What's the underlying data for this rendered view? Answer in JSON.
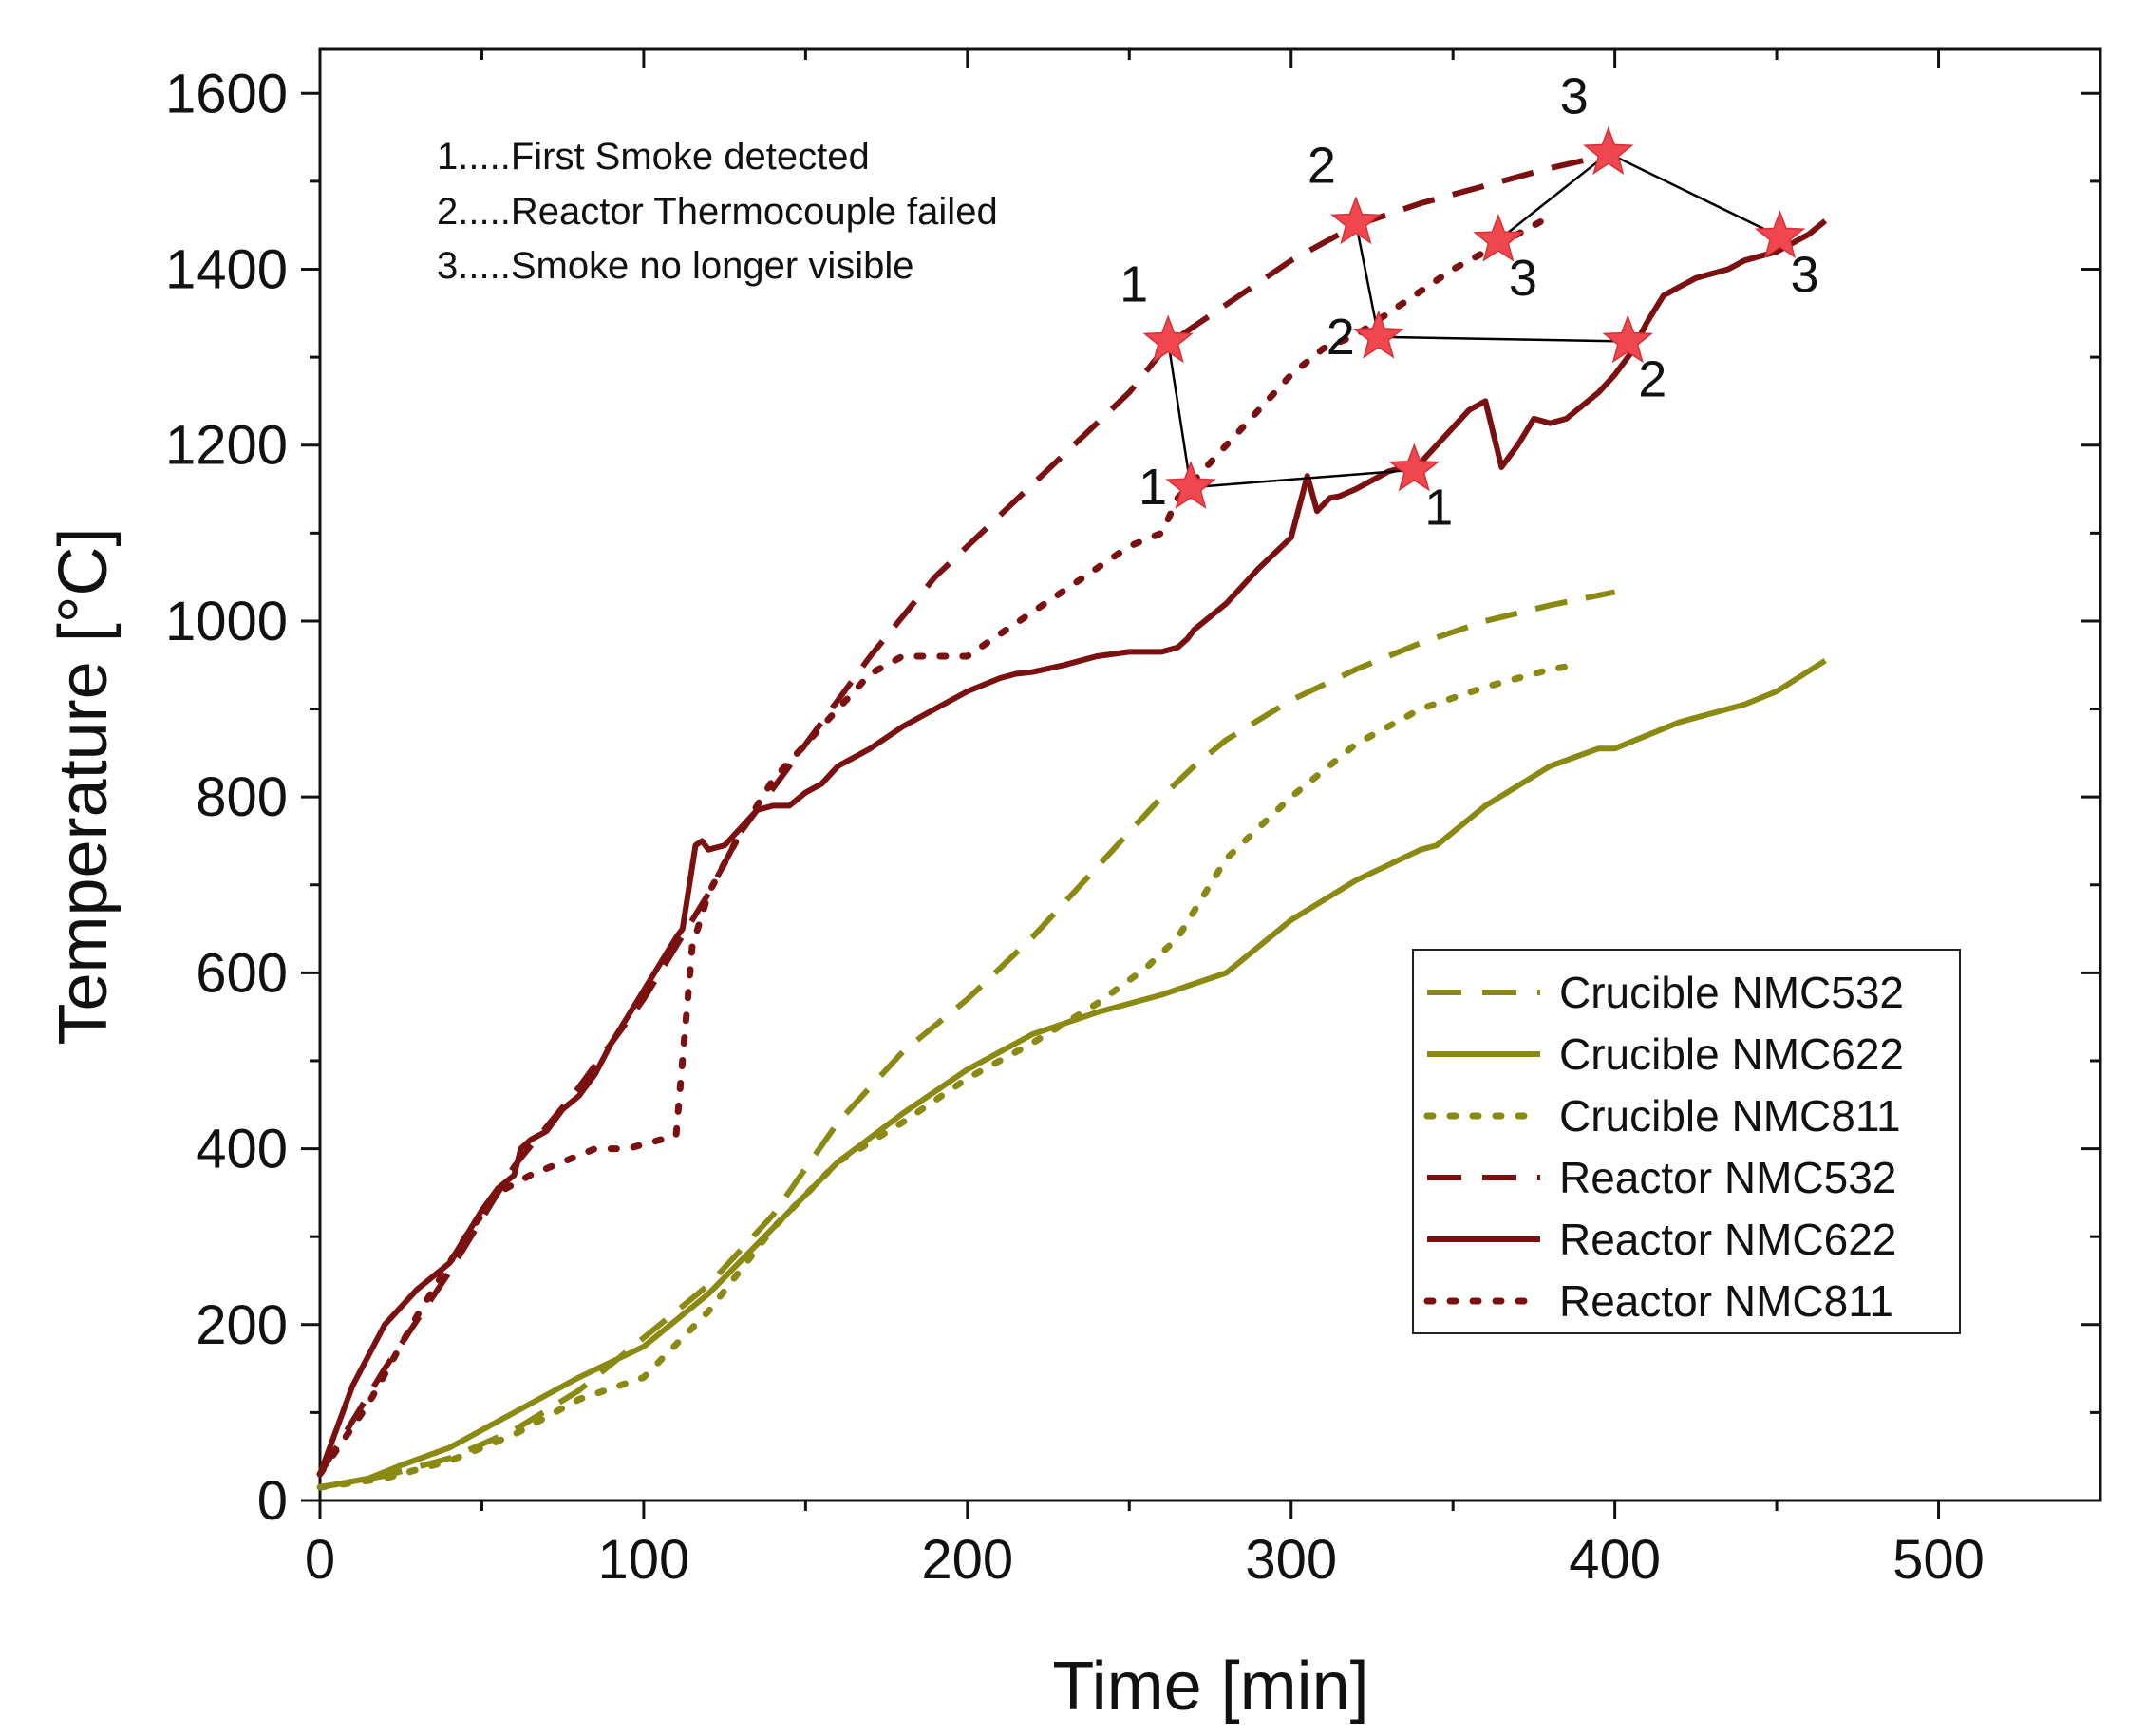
{
  "chart_data": {
    "type": "line",
    "title": "",
    "xlabel": "Time [min]",
    "ylabel": "Temperature [°C]",
    "xlim": [
      0,
      550
    ],
    "ylim": [
      0,
      1650
    ],
    "xticks": [
      0,
      100,
      200,
      300,
      400,
      500
    ],
    "yticks": [
      0,
      200,
      400,
      600,
      800,
      1000,
      1200,
      1400,
      1600
    ],
    "grid": false,
    "legend_position": "lower-right",
    "colors": {
      "crucible": "#8a8a12",
      "reactor": "#7b1010",
      "marker": "#f0474f",
      "connector": "#000000"
    },
    "series": [
      {
        "name": "Crucible NMC532",
        "group": "crucible",
        "style": "dashed",
        "x": [
          0,
          20,
          40,
          60,
          80,
          100,
          120,
          140,
          160,
          180,
          200,
          220,
          240,
          260,
          270,
          280,
          300,
          320,
          340,
          360,
          380,
          400
        ],
        "y": [
          15,
          28,
          48,
          80,
          125,
          185,
          245,
          325,
          430,
          510,
          570,
          640,
          720,
          800,
          835,
          865,
          910,
          945,
          975,
          1000,
          1018,
          1033
        ]
      },
      {
        "name": "Crucible NMC622",
        "group": "crucible",
        "style": "solid",
        "x": [
          0,
          15,
          25,
          40,
          60,
          80,
          100,
          120,
          140,
          160,
          180,
          200,
          220,
          240,
          260,
          280,
          300,
          320,
          340,
          345,
          360,
          380,
          395,
          400,
          420,
          440,
          450,
          465
        ],
        "y": [
          15,
          25,
          40,
          60,
          100,
          140,
          175,
          235,
          310,
          385,
          440,
          490,
          530,
          555,
          575,
          600,
          660,
          705,
          740,
          745,
          790,
          835,
          855,
          855,
          885,
          905,
          920,
          955
        ]
      },
      {
        "name": "Crucible NMC811",
        "group": "crucible",
        "style": "dotted",
        "x": [
          0,
          20,
          40,
          60,
          80,
          100,
          120,
          140,
          160,
          180,
          200,
          220,
          240,
          255,
          265,
          280,
          300,
          320,
          340,
          360,
          380,
          388
        ],
        "y": [
          15,
          25,
          45,
          75,
          115,
          140,
          215,
          310,
          385,
          430,
          480,
          520,
          565,
          605,
          640,
          730,
          800,
          860,
          900,
          925,
          945,
          950
        ]
      },
      {
        "name": "Reactor NMC532",
        "group": "reactor",
        "style": "dashed",
        "x": [
          0,
          20,
          40,
          60,
          80,
          100,
          110,
          120,
          130,
          150,
          170,
          190,
          210,
          230,
          250,
          262,
          280,
          300,
          320,
          340,
          360,
          380,
          398
        ],
        "y": [
          30,
          150,
          260,
          380,
          470,
          570,
          630,
          690,
          760,
          860,
          960,
          1050,
          1120,
          1190,
          1260,
          1315,
          1360,
          1410,
          1450,
          1475,
          1495,
          1515,
          1530
        ]
      },
      {
        "name": "Reactor NMC622",
        "group": "reactor",
        "style": "solid",
        "x": [
          0,
          10,
          20,
          30,
          40,
          45,
          50,
          55,
          60,
          62,
          65,
          70,
          75,
          80,
          85,
          90,
          95,
          100,
          105,
          110,
          112,
          116,
          118,
          120,
          125,
          130,
          135,
          140,
          145,
          150,
          155,
          160,
          170,
          180,
          190,
          200,
          210,
          215,
          220,
          230,
          240,
          250,
          260,
          265,
          268,
          270,
          280,
          290,
          300,
          305,
          308,
          312,
          315,
          320,
          325,
          330,
          340,
          350,
          355,
          360,
          365,
          370,
          375,
          380,
          385,
          390,
          395,
          400,
          405,
          410,
          415,
          420,
          425,
          430,
          435,
          440,
          450,
          460,
          465
        ],
        "y": [
          30,
          130,
          200,
          240,
          270,
          300,
          330,
          355,
          370,
          400,
          410,
          420,
          445,
          460,
          485,
          520,
          550,
          580,
          610,
          640,
          650,
          745,
          750,
          740,
          745,
          765,
          785,
          790,
          790,
          805,
          815,
          835,
          855,
          880,
          900,
          920,
          935,
          940,
          942,
          950,
          960,
          965,
          965,
          970,
          980,
          990,
          1020,
          1060,
          1095,
          1165,
          1125,
          1140,
          1142,
          1150,
          1160,
          1170,
          1180,
          1220,
          1240,
          1250,
          1175,
          1200,
          1230,
          1225,
          1230,
          1245,
          1260,
          1280,
          1305,
          1340,
          1370,
          1380,
          1390,
          1395,
          1400,
          1410,
          1420,
          1440,
          1455
        ]
      },
      {
        "name": "Reactor NMC811",
        "group": "reactor",
        "style": "dotted",
        "x": [
          0,
          15,
          30,
          45,
          55,
          65,
          75,
          85,
          95,
          100,
          105,
          110,
          115,
          120,
          130,
          140,
          150,
          160,
          170,
          180,
          200,
          220,
          240,
          250,
          260,
          265,
          270,
          280,
          290,
          300,
          310,
          320,
          330,
          340,
          350,
          360,
          370,
          380
        ],
        "y": [
          30,
          110,
          210,
          300,
          350,
          370,
          385,
          400,
          400,
          405,
          410,
          415,
          630,
          690,
          760,
          820,
          860,
          900,
          940,
          960,
          960,
          1010,
          1060,
          1085,
          1100,
          1140,
          1160,
          1200,
          1240,
          1280,
          1310,
          1325,
          1350,
          1375,
          1400,
          1420,
          1440,
          1460
        ]
      }
    ],
    "event_notes": [
      "1.....First Smoke detected",
      "2.....Reactor Thermocouple failed",
      "3.....Smoke no longer visible"
    ],
    "events": [
      {
        "label": "1",
        "x": 262,
        "y": 1318,
        "label_side": "above-left"
      },
      {
        "label": "1",
        "x": 269,
        "y": 1152,
        "label_side": "left"
      },
      {
        "label": "1",
        "x": 338,
        "y": 1172,
        "label_side": "below-right"
      },
      {
        "label": "2",
        "x": 320,
        "y": 1453,
        "label_side": "above-left"
      },
      {
        "label": "2",
        "x": 327,
        "y": 1323,
        "label_side": "left"
      },
      {
        "label": "2",
        "x": 404,
        "y": 1318,
        "label_side": "below-right"
      },
      {
        "label": "3",
        "x": 364,
        "y": 1433,
        "label_side": "below-right"
      },
      {
        "label": "3",
        "x": 398,
        "y": 1532,
        "label_side": "above-left"
      },
      {
        "label": "3",
        "x": 451,
        "y": 1437,
        "label_side": "below-right"
      }
    ],
    "event_connectors": [
      [
        [
          262,
          1318
        ],
        [
          269,
          1152
        ],
        [
          338,
          1172
        ]
      ],
      [
        [
          320,
          1453
        ],
        [
          327,
          1323
        ],
        [
          404,
          1318
        ]
      ],
      [
        [
          364,
          1433
        ],
        [
          398,
          1532
        ],
        [
          451,
          1437
        ]
      ]
    ]
  }
}
